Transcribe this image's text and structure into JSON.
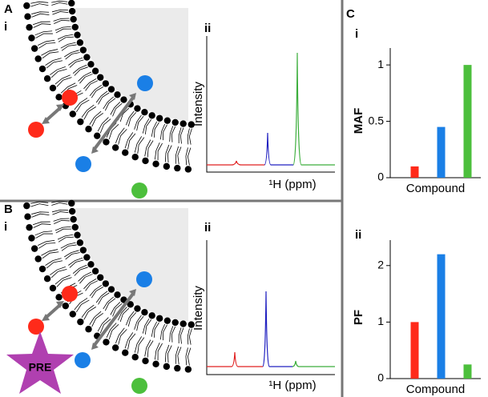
{
  "figure": {
    "panel_a": {
      "label": "A",
      "sub_i": "i",
      "sub_ii": "ii",
      "y_label": "Intensity",
      "x_label": "¹H (ppm)"
    },
    "panel_b": {
      "label": "B",
      "sub_i": "i",
      "sub_ii": "ii",
      "y_label": "Intensity",
      "x_label": "¹H (ppm)",
      "star_label": "PRE"
    },
    "panel_c": {
      "label": "C",
      "sub_i": "i",
      "sub_ii": "ii"
    }
  },
  "chart_data": [
    {
      "type": "bar",
      "xlabel": "Compound",
      "ylabel": "MAF",
      "categories": [
        null,
        null,
        null
      ],
      "values": [
        0.1,
        0.45,
        1.0
      ],
      "colors": [
        "#ff2a1a",
        "#1a7fe6",
        "#4cbf3c"
      ],
      "ylim": [
        0,
        1.15
      ],
      "yticks": [
        0,
        0.5,
        1
      ]
    },
    {
      "type": "bar",
      "xlabel": "Compound",
      "ylabel": "PF",
      "categories": [
        null,
        null,
        null
      ],
      "values": [
        1.0,
        2.2,
        0.25
      ],
      "colors": [
        "#ff2a1a",
        "#1a7fe6",
        "#4cbf3c"
      ],
      "ylim": [
        0,
        2.45
      ],
      "yticks": [
        0,
        1,
        2
      ]
    }
  ]
}
